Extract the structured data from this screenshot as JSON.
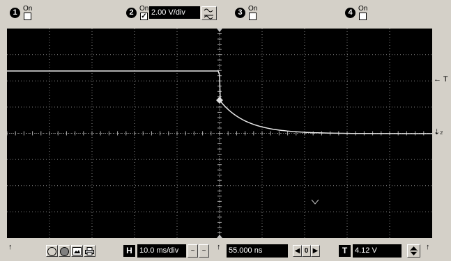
{
  "channels": [
    {
      "number": "1",
      "on_label": "On",
      "checked": false
    },
    {
      "number": "2",
      "on_label": "On",
      "checked": true,
      "scale": "2.00 V/div"
    },
    {
      "number": "3",
      "on_label": "On",
      "checked": false
    },
    {
      "number": "4",
      "on_label": "On",
      "checked": false
    }
  ],
  "check_glyph": "✓",
  "coupling_icon": "~",
  "markers": {
    "trigger_level": "← T",
    "channel_ground": "2"
  },
  "toolbar": {
    "horizontal_label": "H",
    "timebase": "10.0 ms/div",
    "delay": "55.000 ns",
    "trigger_label": "T",
    "trigger_level": "4.12 V",
    "delay_zero": "0",
    "arrow_up": "↑"
  },
  "colors": {
    "background": "#d4d0c8",
    "screen": "#000000",
    "grid": "#8a8a8a",
    "trace": "#e8e8e8",
    "field_bg": "#000000",
    "field_text": "#ffffff"
  }
}
